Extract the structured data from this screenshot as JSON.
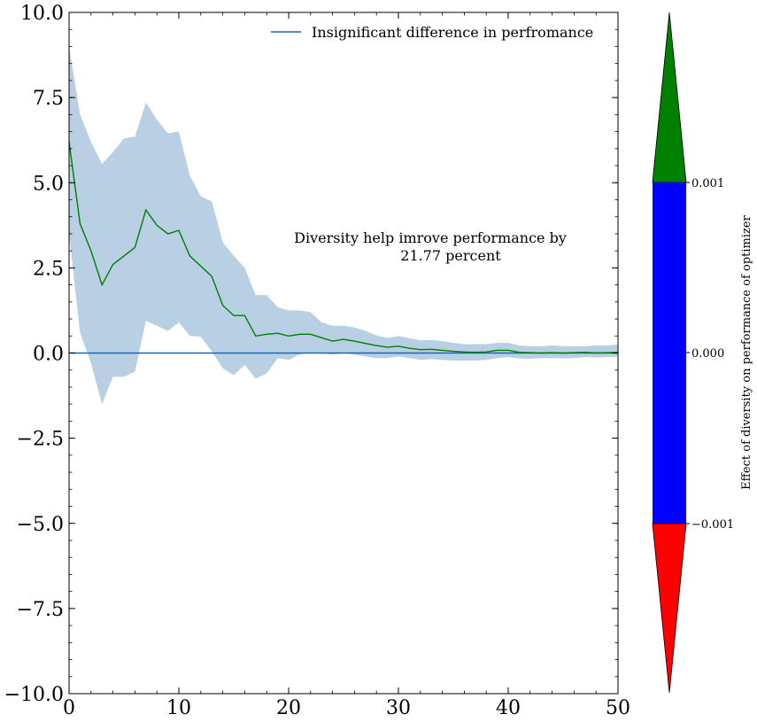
{
  "chart_data": {
    "type": "line",
    "xlim": [
      0,
      50
    ],
    "ylim": [
      -10,
      10
    ],
    "x_ticks": [
      0,
      10,
      20,
      30,
      40,
      50
    ],
    "x_tick_labels": [
      "0",
      "10",
      "20",
      "30",
      "40",
      "50"
    ],
    "y_ticks": [
      -10,
      -7.5,
      -5,
      -2.5,
      0,
      2.5,
      5,
      7.5,
      10
    ],
    "y_tick_labels": [
      "−10.0",
      "−7.5",
      "−5.0",
      "−2.5",
      "0.0",
      "2.5",
      "5.0",
      "7.5",
      "10.0"
    ],
    "x": [
      0,
      1,
      2,
      3,
      4,
      5,
      6,
      7,
      8,
      9,
      10,
      11,
      12,
      13,
      14,
      15,
      16,
      17,
      18,
      19,
      20,
      21,
      22,
      23,
      24,
      25,
      26,
      27,
      28,
      29,
      30,
      31,
      32,
      33,
      34,
      35,
      36,
      37,
      38,
      39,
      40,
      41,
      42,
      43,
      44,
      45,
      46,
      47,
      48,
      49,
      50
    ],
    "series": [
      {
        "values": [
          6.2,
          3.8,
          3.0,
          2.0,
          2.6,
          2.85,
          3.1,
          4.2,
          3.75,
          3.5,
          3.6,
          2.85,
          2.55,
          2.25,
          1.4,
          1.1,
          1.1,
          0.5,
          0.55,
          0.58,
          0.5,
          0.55,
          0.55,
          0.45,
          0.35,
          0.4,
          0.35,
          0.28,
          0.22,
          0.17,
          0.2,
          0.14,
          0.1,
          0.11,
          0.08,
          0.05,
          0.03,
          0.02,
          0.03,
          0.08,
          0.08,
          0.02,
          0.01,
          0.0,
          0.01,
          0.0,
          0.01,
          0.02,
          0.0,
          0.01,
          0.02
        ],
        "lower": [
          3.5,
          0.6,
          -0.3,
          -1.5,
          -0.7,
          -0.7,
          -0.55,
          0.95,
          0.8,
          0.65,
          0.9,
          0.5,
          0.48,
          0.05,
          -0.45,
          -0.65,
          -0.35,
          -0.75,
          -0.6,
          -0.15,
          -0.2,
          -0.05,
          0.02,
          0.0,
          -0.05,
          0.0,
          -0.05,
          -0.1,
          -0.15,
          -0.15,
          -0.1,
          -0.15,
          -0.2,
          -0.18,
          -0.2,
          -0.22,
          -0.22,
          -0.22,
          -0.2,
          -0.15,
          -0.12,
          -0.16,
          -0.17,
          -0.15,
          -0.15,
          -0.16,
          -0.15,
          -0.12,
          -0.13,
          -0.12,
          -0.11
        ],
        "upper": [
          9.0,
          7.0,
          6.2,
          5.55,
          5.9,
          6.3,
          6.35,
          7.35,
          6.85,
          6.45,
          6.5,
          5.2,
          4.6,
          4.45,
          3.25,
          2.85,
          2.5,
          1.7,
          1.7,
          1.35,
          1.25,
          1.25,
          1.2,
          0.9,
          0.8,
          0.8,
          0.75,
          0.65,
          0.52,
          0.44,
          0.5,
          0.44,
          0.37,
          0.38,
          0.35,
          0.3,
          0.26,
          0.26,
          0.26,
          0.3,
          0.3,
          0.22,
          0.2,
          0.2,
          0.22,
          0.2,
          0.2,
          0.2,
          0.22,
          0.22,
          0.25
        ],
        "color": "#008000",
        "band_color": "#b8cfe4"
      }
    ],
    "reference_line": {
      "y": 0,
      "color": "#1f64b4",
      "label": "Insignificant difference in perfromance"
    },
    "legend_position": "top-right",
    "annotation": [
      "Diversity help imrove performance by",
      "21.77 percent"
    ],
    "colorbar": {
      "label": "Effect of diversity on performance of optimizer",
      "tick_labels": [
        "0.001",
        "0.000",
        "−0.001"
      ],
      "segments": [
        {
          "name": "over",
          "color": "#008000"
        },
        {
          "name": "mid",
          "color": "#0000ff"
        },
        {
          "name": "under",
          "color": "#ff0000"
        }
      ]
    }
  }
}
